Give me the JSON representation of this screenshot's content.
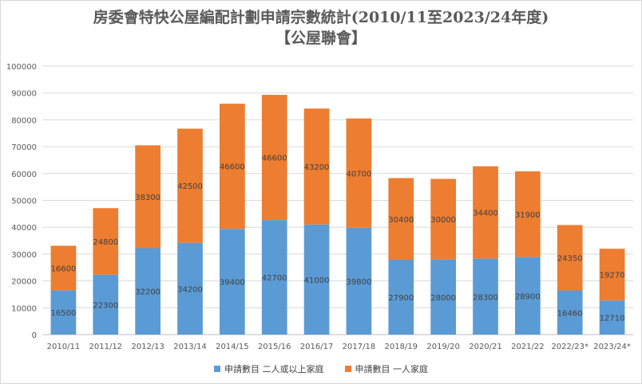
{
  "chart_data": {
    "type": "bar",
    "stacked": true,
    "title": "房委會特快公屋編配計劃申請宗數統計(2010/11至2023/24年度)",
    "subtitle": "【公屋聯會】",
    "categories": [
      "2010/11",
      "2011/12",
      "2012/13",
      "2013/14",
      "2014/15",
      "2015/16",
      "2016/17",
      "2017/18",
      "2018/19",
      "2019/20",
      "2020/21",
      "2021/22",
      "2022/23*",
      "2023/24*"
    ],
    "series": [
      {
        "name": "申請數目 二人或以上家庭",
        "color": "#5b9bd5",
        "values": [
          16500,
          22300,
          32200,
          34200,
          39400,
          42700,
          41000,
          39800,
          27900,
          28000,
          28300,
          28900,
          16460,
          12710
        ]
      },
      {
        "name": "申請數目 一人家庭",
        "color": "#ed7d31",
        "values": [
          16600,
          24800,
          38300,
          42500,
          46600,
          46600,
          43200,
          40700,
          30400,
          30000,
          34400,
          31900,
          24350,
          19270
        ]
      }
    ],
    "ylim": [
      0,
      100000
    ],
    "yticks": [
      0,
      10000,
      20000,
      30000,
      40000,
      50000,
      60000,
      70000,
      80000,
      90000,
      100000
    ],
    "grid": true,
    "legend": "bottom"
  }
}
